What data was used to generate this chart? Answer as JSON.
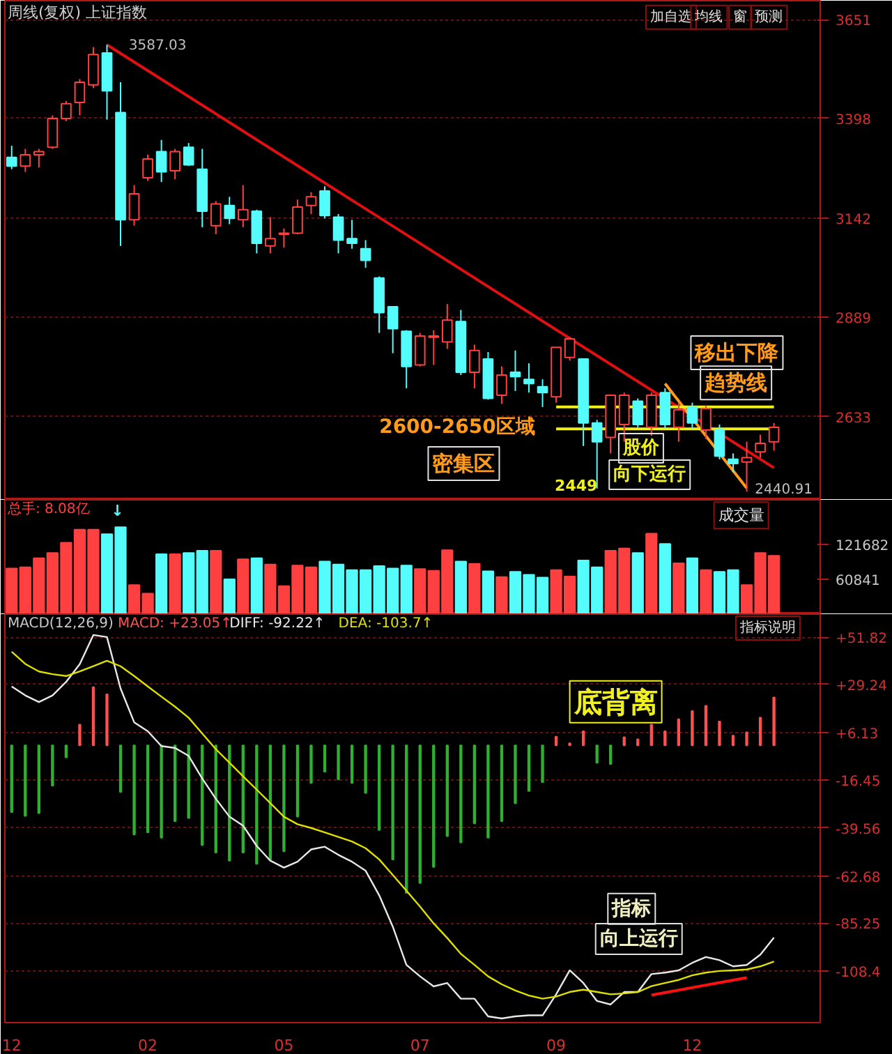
{
  "chart_data": [
    {
      "type": "candlestick",
      "title": "周线(复权) 上证指数",
      "categories": [
        "12",
        null,
        null,
        null,
        null,
        null,
        null,
        null,
        null,
        null,
        "02",
        null,
        null,
        null,
        null,
        null,
        null,
        null,
        null,
        null,
        "05",
        null,
        null,
        null,
        null,
        null,
        null,
        null,
        null,
        null,
        "07",
        null,
        null,
        null,
        null,
        null,
        null,
        null,
        null,
        null,
        "09",
        null,
        null,
        null,
        null,
        null,
        null,
        null,
        null,
        null,
        "12",
        null,
        null,
        null,
        null,
        null,
        null
      ],
      "tick_labels": "y",
      "grid": "y",
      "ylim": [
        2420,
        3700
      ],
      "yticks": [
        2633,
        2889,
        3142,
        3398,
        3651
      ],
      "ohlc": [
        [
          3298,
          3328,
          3268,
          3276
        ],
        [
          3276,
          3320,
          3261,
          3305
        ],
        [
          3305,
          3320,
          3272,
          3313
        ],
        [
          3324,
          3406,
          3320,
          3398
        ],
        [
          3398,
          3443,
          3391,
          3436
        ],
        [
          3439,
          3499,
          3406,
          3491
        ],
        [
          3484,
          3581,
          3476,
          3562
        ],
        [
          3566,
          3587.03,
          3395,
          3469
        ],
        [
          3413,
          3491,
          3071,
          3138
        ],
        [
          3138,
          3227,
          3123,
          3205
        ],
        [
          3246,
          3305,
          3238,
          3294
        ],
        [
          3313,
          3343,
          3235,
          3261
        ],
        [
          3264,
          3320,
          3242,
          3313
        ],
        [
          3324,
          3335,
          3276,
          3279
        ],
        [
          3268,
          3320,
          3119,
          3160
        ],
        [
          3123,
          3186,
          3101,
          3179
        ],
        [
          3175,
          3197,
          3127,
          3142
        ],
        [
          3138,
          3227,
          3119,
          3164
        ],
        [
          3160,
          3164,
          3052,
          3078
        ],
        [
          3071,
          3145,
          3052,
          3090
        ],
        [
          3101,
          3116,
          3067,
          3104
        ],
        [
          3104,
          3190,
          3101,
          3171
        ],
        [
          3175,
          3209,
          3153,
          3197
        ],
        [
          3212,
          3224,
          3142,
          3149
        ],
        [
          3145,
          3153,
          3052,
          3086
        ],
        [
          3090,
          3138,
          3064,
          3078
        ],
        [
          3064,
          3086,
          3015,
          3034
        ],
        [
          2989,
          2993,
          2848,
          2900
        ],
        [
          2915,
          2915,
          2796,
          2859
        ],
        [
          2852,
          2855,
          2706,
          2762
        ],
        [
          2766,
          2848,
          2762,
          2840
        ],
        [
          2837,
          2855,
          2766,
          2840
        ],
        [
          2825,
          2922,
          2807,
          2881
        ],
        [
          2877,
          2907,
          2740,
          2747
        ],
        [
          2747,
          2818,
          2706,
          2803
        ],
        [
          2781,
          2799,
          2677,
          2680
        ],
        [
          2688,
          2762,
          2666,
          2740
        ],
        [
          2747,
          2803,
          2699,
          2736
        ],
        [
          2729,
          2770,
          2695,
          2718
        ],
        [
          2710,
          2729,
          2658,
          2695
        ],
        [
          2684,
          2811,
          2669,
          2811
        ],
        [
          2785,
          2837,
          2777,
          2833
        ],
        [
          2781,
          2781,
          2558,
          2617
        ],
        [
          2617,
          2625,
          2449,
          2569
        ],
        [
          2580,
          2688,
          2539,
          2688
        ],
        [
          2613,
          2695,
          2569,
          2688
        ],
        [
          2673,
          2680,
          2606,
          2613
        ],
        [
          2606,
          2695,
          2584,
          2688
        ],
        [
          2695,
          2706,
          2602,
          2613
        ],
        [
          2606,
          2669,
          2569,
          2651
        ],
        [
          2658,
          2669,
          2602,
          2617
        ],
        [
          2599,
          2662,
          2576,
          2654
        ],
        [
          2599,
          2613,
          2524,
          2532
        ],
        [
          2524,
          2539,
          2491,
          2513
        ],
        [
          2517,
          2569,
          2440.91,
          2528
        ],
        [
          2543,
          2587,
          2528,
          2565
        ],
        [
          2569,
          2617,
          2546,
          2606
        ]
      ],
      "colors": [
        "#54fcfc",
        "#ff4040",
        "#ff4040",
        "#ff4040",
        "#ff4040",
        "#ff4040",
        "#ff4040",
        "#54fcfc",
        "#54fcfc",
        "#ff4040",
        "#ff4040",
        "#54fcfc",
        "#ff4040",
        "#54fcfc",
        "#54fcfc",
        "#ff4040",
        "#54fcfc",
        "#ff4040",
        "#54fcfc",
        "#ff4040",
        "#ff4040",
        "#ff4040",
        "#ff4040",
        "#54fcfc",
        "#54fcfc",
        "#54fcfc",
        "#54fcfc",
        "#54fcfc",
        "#54fcfc",
        "#54fcfc",
        "#ff4040",
        "#ff4040",
        "#ff4040",
        "#54fcfc",
        "#ff4040",
        "#54fcfc",
        "#ff4040",
        "#54fcfc",
        "#54fcfc",
        "#54fcfc",
        "#ff4040",
        "#ff4040",
        "#54fcfc",
        "#54fcfc",
        "#ff4040",
        "#ff4040",
        "#54fcfc",
        "#ff4040",
        "#54fcfc",
        "#ff4040",
        "#54fcfc",
        "#ff4040",
        "#54fcfc",
        "#54fcfc",
        "#ff4040",
        "#ff4040",
        "#ff4040"
      ],
      "series": [
        {
          "type": "line",
          "color": "#e01010",
          "values": [
            null,
            null,
            null,
            null,
            null,
            null,
            null,
            3587.03,
            null,
            null,
            null,
            null,
            null,
            null,
            null,
            null,
            null,
            null,
            null,
            null,
            null,
            null,
            null,
            null,
            null,
            null,
            null,
            null,
            null,
            null,
            null,
            null,
            null,
            null,
            null,
            null,
            null,
            null,
            null,
            null,
            null,
            null,
            null,
            null,
            null,
            null,
            null,
            null,
            null,
            null,
            null,
            null,
            null,
            null,
            null,
            null,
            2502
          ]
        },
        {
          "type": "line",
          "color": "#ff9a1a",
          "values": [
            null,
            null,
            null,
            null,
            null,
            null,
            null,
            null,
            null,
            null,
            null,
            null,
            null,
            null,
            null,
            null,
            null,
            null,
            null,
            null,
            null,
            null,
            null,
            null,
            null,
            null,
            null,
            null,
            null,
            null,
            null,
            null,
            null,
            null,
            null,
            null,
            null,
            null,
            null,
            null,
            null,
            null,
            null,
            null,
            null,
            null,
            null,
            null,
            2718,
            null,
            null,
            null,
            null,
            null,
            2450,
            null,
            null
          ]
        },
        {
          "type": "line",
          "color": "#f0f020",
          "values": [
            null,
            null,
            null,
            null,
            null,
            null,
            null,
            null,
            null,
            null,
            null,
            null,
            null,
            null,
            null,
            null,
            null,
            null,
            null,
            null,
            null,
            null,
            null,
            null,
            null,
            null,
            null,
            null,
            null,
            null,
            null,
            null,
            null,
            null,
            null,
            null,
            null,
            null,
            null,
            null,
            2658,
            null,
            null,
            null,
            null,
            null,
            null,
            null,
            null,
            null,
            null,
            null,
            null,
            null,
            null,
            null,
            2658
          ]
        },
        {
          "type": "line",
          "color": "#f0f020",
          "values": [
            null,
            null,
            null,
            null,
            null,
            null,
            null,
            null,
            null,
            null,
            null,
            null,
            null,
            null,
            null,
            null,
            null,
            null,
            null,
            null,
            null,
            null,
            null,
            null,
            null,
            null,
            null,
            null,
            null,
            null,
            null,
            null,
            null,
            null,
            null,
            null,
            null,
            null,
            null,
            null,
            2602,
            null,
            null,
            null,
            null,
            null,
            null,
            null,
            null,
            null,
            null,
            null,
            null,
            null,
            null,
            null,
            2602
          ]
        }
      ],
      "annotations": [
        "加自选",
        "均线",
        "窗",
        "预测",
        "3587.03",
        "2600-2650区域",
        "密集区",
        "2449",
        "股价",
        "向下运行",
        "移出下降",
        "趋势线",
        "2440.91"
      ]
    },
    {
      "type": "bar",
      "categories": [
        "12",
        null,
        null,
        null,
        null,
        null,
        null,
        null,
        null,
        null,
        "02",
        null,
        null,
        null,
        null,
        null,
        null,
        null,
        null,
        null,
        "05",
        null,
        null,
        null,
        null,
        null,
        null,
        null,
        null,
        null,
        "07",
        null,
        null,
        null,
        null,
        null,
        null,
        null,
        null,
        null,
        "09",
        null,
        null,
        null,
        null,
        null,
        null,
        null,
        null,
        null,
        "12",
        null,
        null,
        null,
        null,
        null,
        null
      ],
      "tick_labels": "y",
      "ylim": [
        0,
        200000
      ],
      "yticks": [
        60841,
        121682
      ],
      "values": [
        80000,
        82000,
        98000,
        107000,
        125000,
        148000,
        148000,
        140000,
        152000,
        51000,
        36000,
        105000,
        105000,
        107000,
        111000,
        111000,
        61000,
        96000,
        98000,
        87000,
        49000,
        85000,
        82000,
        92000,
        87000,
        77000,
        77000,
        84000,
        80000,
        85000,
        79000,
        76000,
        112000,
        92000,
        88000,
        75000,
        65000,
        74000,
        69000,
        64000,
        77000,
        66000,
        94000,
        82000,
        111000,
        115000,
        107000,
        141000,
        123000,
        89000,
        98000,
        77000,
        74000,
        77000,
        51000,
        107000,
        102000
      ],
      "colors": [
        "#ff4040",
        "#ff4040",
        "#ff4040",
        "#ff4040",
        "#ff4040",
        "#ff4040",
        "#ff4040",
        "#54fcfc",
        "#54fcfc",
        "#ff4040",
        "#ff4040",
        "#54fcfc",
        "#ff4040",
        "#54fcfc",
        "#54fcfc",
        "#ff4040",
        "#54fcfc",
        "#ff4040",
        "#54fcfc",
        "#ff4040",
        "#ff4040",
        "#ff4040",
        "#ff4040",
        "#54fcfc",
        "#54fcfc",
        "#54fcfc",
        "#54fcfc",
        "#54fcfc",
        "#54fcfc",
        "#54fcfc",
        "#ff4040",
        "#ff4040",
        "#ff4040",
        "#54fcfc",
        "#ff4040",
        "#54fcfc",
        "#ff4040",
        "#54fcfc",
        "#54fcfc",
        "#54fcfc",
        "#ff4040",
        "#ff4040",
        "#54fcfc",
        "#54fcfc",
        "#ff4040",
        "#ff4040",
        "#54fcfc",
        "#ff4040",
        "#54fcfc",
        "#ff4040",
        "#54fcfc",
        "#ff4040",
        "#54fcfc",
        "#54fcfc",
        "#ff4040",
        "#ff4040",
        "#ff4040"
      ],
      "annotations": [
        "总手: 8.08亿",
        "↓",
        "成交量"
      ]
    },
    {
      "type": "bar",
      "categories": [
        "12",
        null,
        null,
        null,
        null,
        null,
        null,
        null,
        null,
        null,
        "02",
        null,
        null,
        null,
        null,
        null,
        null,
        null,
        null,
        null,
        "05",
        null,
        null,
        null,
        null,
        null,
        null,
        null,
        null,
        null,
        "07",
        null,
        null,
        null,
        null,
        null,
        null,
        null,
        null,
        null,
        "09",
        null,
        null,
        null,
        null,
        null,
        null,
        null,
        null,
        null,
        "12",
        null,
        null,
        null,
        null,
        null,
        null
      ],
      "grid": "y",
      "ylim": [
        -133,
        63
      ],
      "yticks": [
        {
          "value": 51.82,
          "label": "+51.82"
        },
        {
          "value": 29.24,
          "label": "+29.24"
        },
        {
          "value": 6.13,
          "label": "+6.13"
        },
        -16.45,
        -39.56,
        -62.68,
        -85.25,
        -108.4
      ],
      "series": [
        {
          "type": "bar",
          "values": [
            -32,
            -33.8,
            -32.5,
            -19.3,
            -5.7,
            10,
            28,
            24.5,
            -22.3,
            -42.8,
            -41.7,
            -44.3,
            -36.3,
            -34.8,
            -47.8,
            -51.4,
            -55.3,
            -51.4,
            -56.8,
            -54.7,
            -50.8,
            -34.2,
            -18,
            -12.6,
            -16.3,
            -18,
            -22.8,
            -40.6,
            -54.7,
            -70.8,
            -66,
            -58.3,
            -43.5,
            -46.5,
            -37.4,
            -44.3,
            -36.3,
            -27.7,
            -21.9,
            -17.6,
            4.2,
            1,
            6.8,
            -8.3,
            -8.9,
            4,
            3,
            10,
            6.8,
            12.6,
            16.5,
            19,
            11.5,
            4.7,
            6.3,
            13.3,
            23.05
          ],
          "colors": [
            "#30b030",
            "#30b030",
            "#30b030",
            "#30b030",
            "#30b030",
            "#ff5050",
            "#ff5050",
            "#ff5050",
            "#30b030",
            "#30b030",
            "#30b030",
            "#30b030",
            "#30b030",
            "#30b030",
            "#30b030",
            "#30b030",
            "#30b030",
            "#30b030",
            "#30b030",
            "#30b030",
            "#30b030",
            "#30b030",
            "#30b030",
            "#30b030",
            "#30b030",
            "#30b030",
            "#30b030",
            "#30b030",
            "#30b030",
            "#30b030",
            "#30b030",
            "#30b030",
            "#30b030",
            "#30b030",
            "#30b030",
            "#30b030",
            "#30b030",
            "#30b030",
            "#30b030",
            "#30b030",
            "#ff5050",
            "#ff5050",
            "#ff5050",
            "#30b030",
            "#30b030",
            "#ff5050",
            "#ff5050",
            "#ff5050",
            "#ff5050",
            "#ff5050",
            "#ff5050",
            "#ff5050",
            "#ff5050",
            "#ff5050",
            "#ff5050",
            "#ff5050",
            "#ff5050"
          ]
        },
        {
          "type": "line",
          "color": "#e8e8e8",
          "values": [
            28.3,
            24,
            20.8,
            24,
            30.5,
            39,
            53,
            52,
            27.3,
            11.1,
            6.8,
            -0.3,
            -1.2,
            -5,
            -15.9,
            -25.6,
            -34.2,
            -38.5,
            -48.2,
            -55.3,
            -58.6,
            -55.8,
            -49.9,
            -48.6,
            -52.5,
            -55.8,
            -60.1,
            -71.9,
            -87,
            -105.3,
            -110.8,
            -115.6,
            -114,
            -121.5,
            -121.5,
            -130,
            -131,
            -130,
            -129.5,
            -129.5,
            -119.4,
            -107.9,
            -114,
            -122.6,
            -124.3,
            -118.3,
            -118.3,
            -109.7,
            -109,
            -107.9,
            -104.3,
            -101.5,
            -103,
            -106,
            -105.3,
            -100.4,
            -92.22
          ]
        },
        {
          "type": "line",
          "color": "#e0e000",
          "values": [
            45,
            39.1,
            35.5,
            34.2,
            33.3,
            35.5,
            38,
            40.6,
            38,
            33.3,
            28.3,
            23.4,
            18.6,
            13.3,
            5.7,
            -1.8,
            -8.3,
            -14.8,
            -21.2,
            -27.7,
            -34.2,
            -37.8,
            -39.6,
            -41.7,
            -43.9,
            -46.1,
            -49.3,
            -54.7,
            -62.2,
            -69.7,
            -77.3,
            -85.4,
            -92.4,
            -100,
            -105.3,
            -110.8,
            -114.6,
            -117.6,
            -120,
            -121.5,
            -120.5,
            -118.3,
            -117.2,
            -118.3,
            -119.4,
            -119,
            -118.3,
            -115.5,
            -114,
            -112.5,
            -110.3,
            -109,
            -108.2,
            -107.9,
            -107.5,
            -106,
            -103.7
          ]
        },
        {
          "type": "line",
          "color": "#ff1010",
          "values": [
            null,
            null,
            null,
            null,
            null,
            null,
            null,
            null,
            null,
            null,
            null,
            null,
            null,
            null,
            null,
            null,
            null,
            null,
            null,
            null,
            null,
            null,
            null,
            null,
            null,
            null,
            null,
            null,
            null,
            null,
            null,
            null,
            null,
            null,
            null,
            null,
            null,
            null,
            null,
            null,
            null,
            null,
            null,
            null,
            null,
            null,
            null,
            -119.8,
            null,
            null,
            null,
            null,
            null,
            null,
            -111.4,
            null,
            null
          ]
        }
      ],
      "annotations": [
        "MACD(12,26,9)",
        "MACD: +23.05↑",
        "DIFF: -92.22↑",
        "DEA: -103.7↑",
        "指标说明",
        "底背离",
        "指标",
        "向上运行"
      ]
    }
  ]
}
